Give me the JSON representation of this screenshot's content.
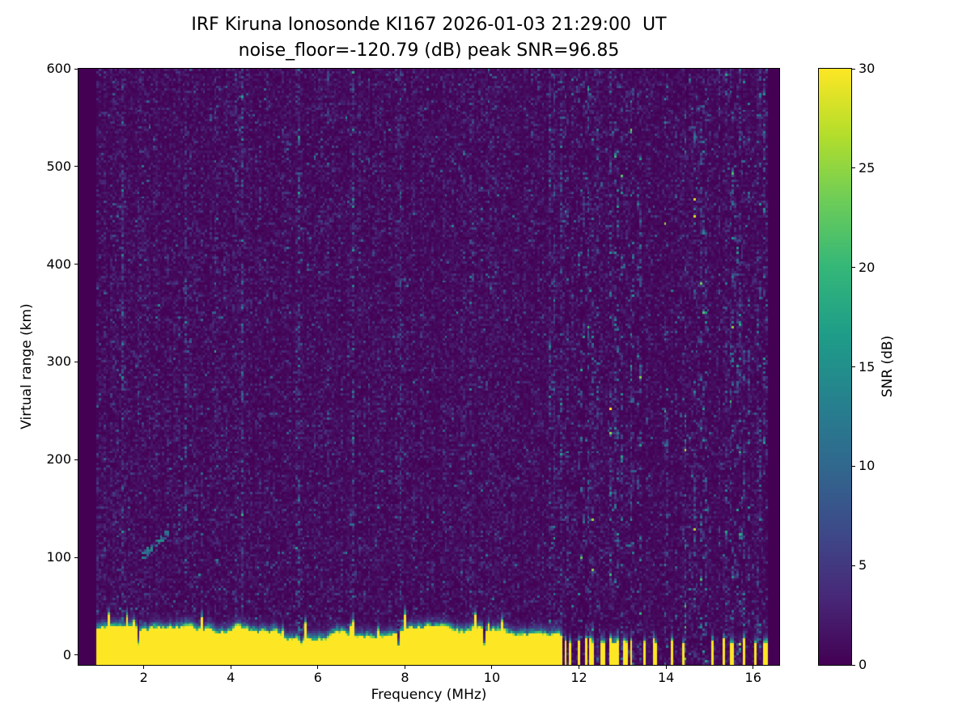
{
  "figure": {
    "title_line1": "IRF Kiruna Ionosonde KI167 2026-01-03 21:29:00  UT",
    "title_line2": "noise_floor=-120.79 (dB) peak SNR=96.85",
    "background_color": "#ffffff"
  },
  "chart_data": {
    "type": "heatmap",
    "title": "IRF Kiruna Ionosonde KI167 2026-01-03 21:29:00  UT",
    "subtitle": "noise_floor=-120.79 (dB) peak SNR=96.85",
    "station": "KI167",
    "timestamp_ut": "2026-01-03 21:29:00",
    "noise_floor_db": -120.79,
    "peak_snr_db": 96.85,
    "xlabel": "Frequency (MHz)",
    "ylabel": "Virtual range (km)",
    "colorbar_label": "SNR (dB)",
    "colormap": "viridis",
    "grid": false,
    "xlim": [
      0.5,
      16.6
    ],
    "ylim": [
      -10,
      600
    ],
    "clim": [
      0,
      30
    ],
    "xticks": [
      2,
      4,
      6,
      8,
      10,
      12,
      14,
      16
    ],
    "yticks": [
      0,
      100,
      200,
      300,
      400,
      500,
      600
    ],
    "colorbar_ticks": [
      0,
      5,
      10,
      15,
      20,
      25,
      30
    ],
    "background_value_color": "#440154",
    "peak_value_color": "#fde725",
    "data_extent": {
      "freq_mhz": [
        0.9,
        16.35
      ],
      "range_km": [
        -10,
        600
      ]
    },
    "features": [
      {
        "name": "ground-clutter-band",
        "freq_mhz": [
          0.9,
          11.6
        ],
        "range_km": [
          -10,
          26
        ],
        "snr_db": 30,
        "note": "continuous saturated yellow band along the bottom with ragged teal/green upper fringe and occasional narrow dark notches"
      },
      {
        "name": "intermittent-clutter-stripes",
        "freq_mhz": [
          11.6,
          16.3
        ],
        "range_km": [
          -10,
          16
        ],
        "snr_db": 30,
        "note": "sparse narrow vertical yellow stripes, denser between 11.6 and 13.2 MHz, isolated singles near 13.5, 14.2, 15.0, 15.6 and 16.1 MHz"
      },
      {
        "name": "sporadic-E-echo",
        "freq_mhz": [
          1.95,
          2.55
        ],
        "range_km": [
          100,
          125
        ],
        "snr_db": 12,
        "note": "short upward-sloping teal trace near 2 MHz around 110 km virtual range"
      },
      {
        "name": "background-noise",
        "freq_mhz": [
          0.9,
          16.35
        ],
        "range_km": [
          -10,
          600
        ],
        "snr_db": [
          0,
          6
        ],
        "note": "dark purple speckle with faint vertical striping; stronger dashed vertical noise stripes above 11.5 MHz"
      }
    ]
  }
}
